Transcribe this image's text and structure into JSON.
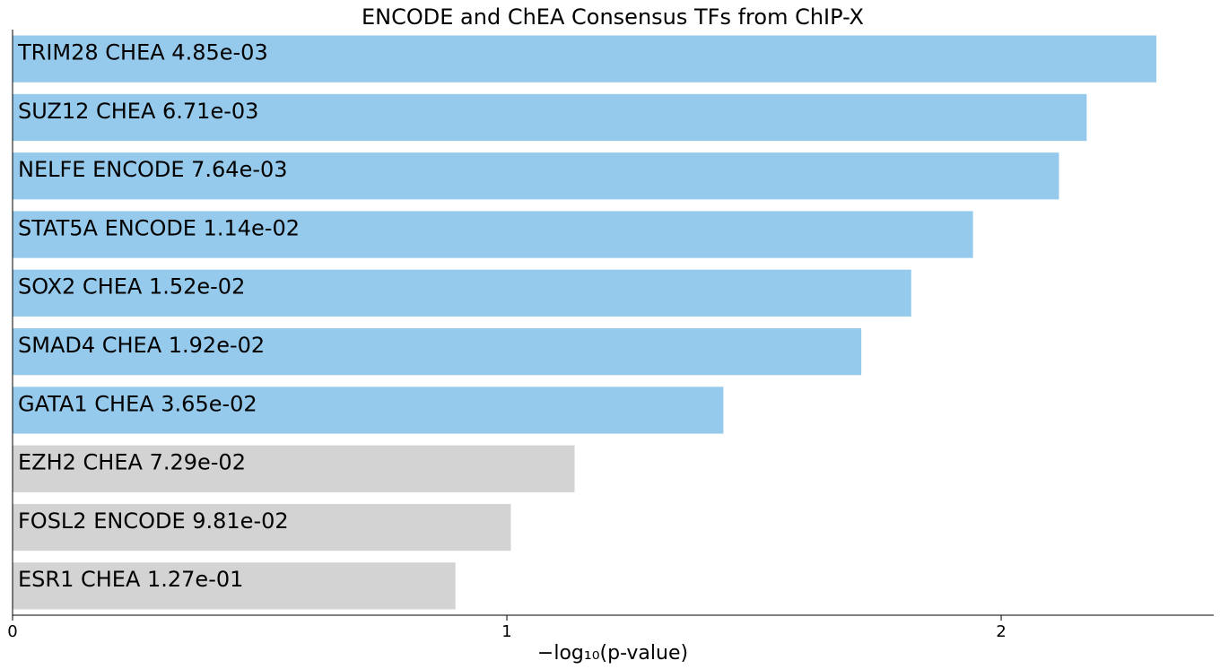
{
  "chart_data": {
    "type": "bar",
    "orientation": "horizontal",
    "title": "ENCODE and ChEA Consensus TFs from ChIP-X",
    "xlabel": "−log₁₀(p-value)",
    "ylabel": "",
    "xlim": [
      0,
      2.43
    ],
    "xticks": [
      0,
      1,
      2
    ],
    "grid": false,
    "colors": {
      "significant": "#95CAEC",
      "nonsignificant": "#D3D3D3"
    },
    "bars": [
      {
        "label": "TRIM28 CHEA  4.85e-03",
        "value": 2.314,
        "significant": true
      },
      {
        "label": "SUZ12 CHEA  6.71e-03",
        "value": 2.173,
        "significant": true
      },
      {
        "label": "NELFE ENCODE  7.64e-03",
        "value": 2.117,
        "significant": true
      },
      {
        "label": "STAT5A ENCODE  1.14e-02",
        "value": 1.943,
        "significant": true
      },
      {
        "label": "SOX2 CHEA  1.52e-02",
        "value": 1.818,
        "significant": true
      },
      {
        "label": "SMAD4 CHEA  1.92e-02",
        "value": 1.717,
        "significant": true
      },
      {
        "label": "GATA1 CHEA  3.65e-02",
        "value": 1.438,
        "significant": true
      },
      {
        "label": "EZH2 CHEA  7.29e-02",
        "value": 1.137,
        "significant": false
      },
      {
        "label": "FOSL2 ENCODE  9.81e-02",
        "value": 1.008,
        "significant": false
      },
      {
        "label": "ESR1 CHEA  1.27e-01",
        "value": 0.896,
        "significant": false
      }
    ]
  }
}
